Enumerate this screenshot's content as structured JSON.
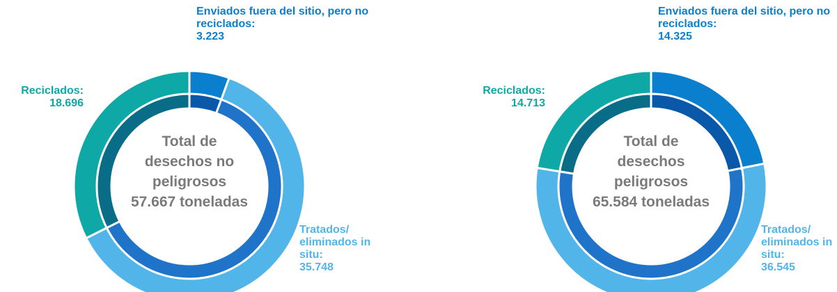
{
  "chart_data": [
    {
      "type": "pie",
      "categories": [
        "Enviados fuera del sitio, pero no reciclados:",
        "Tratados/ eliminados in situ:",
        "Reciclados:"
      ],
      "values": [
        3223,
        35748,
        18696
      ],
      "value_labels": [
        "3.223",
        "35.748",
        "18.696"
      ],
      "colors": [
        "#0a7fce",
        "#52b5ea",
        "#0ea9a7"
      ],
      "inner_colors": [
        "#0a58a9",
        "#1f74c9",
        "#0a6d88"
      ],
      "center_label": [
        "Total de",
        "desechos no",
        "peligrosos",
        "57.667 toneladas"
      ]
    },
    {
      "type": "pie",
      "categories": [
        "Enviados fuera del sitio, pero no reciclados:",
        "Tratados/ eliminados in situ:",
        "Reciclados:"
      ],
      "values": [
        14325,
        36545,
        14713
      ],
      "value_labels": [
        "14.325",
        "36.545",
        "14.713"
      ],
      "colors": [
        "#0a7fce",
        "#52b5ea",
        "#0ea9a7"
      ],
      "inner_colors": [
        "#0a58a9",
        "#1f74c9",
        "#0a6d88"
      ],
      "center_label": [
        "Total de",
        "desechos",
        "peligrosos",
        "65.584 toneladas"
      ]
    }
  ]
}
